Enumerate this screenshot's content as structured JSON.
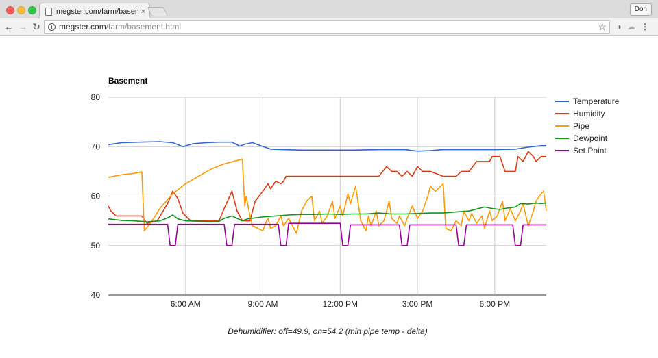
{
  "browser": {
    "tab_title": "megster.com/farm/basement.h",
    "tab_close": "×",
    "profile": "Don",
    "url_host": "megster.com",
    "url_path": "/farm/basement.html"
  },
  "icons": {
    "back": "←",
    "forward": "→",
    "reload": "↻",
    "info": "i",
    "star": "☆",
    "ext1": "◑",
    "ext2": "☁",
    "menu": "⋮"
  },
  "colors": {
    "temperature": "#3366cc",
    "humidity": "#dc3912",
    "pipe": "#ff9900",
    "dewpoint": "#109618",
    "setpoint": "#990099",
    "grid": "#cccccc"
  },
  "chart_data": {
    "type": "line",
    "title": "Basement",
    "caption": "Dehumidifier: off=49.9, on=54.2 (min pipe temp - delta)",
    "ylim": [
      40,
      80
    ],
    "yticks": [
      40,
      50,
      60,
      70,
      80
    ],
    "xlim": [
      3.0,
      20.0
    ],
    "x_unit": "hour of day",
    "xticks": [
      {
        "value": 6,
        "label": "6:00 AM"
      },
      {
        "value": 9,
        "label": "9:00 AM"
      },
      {
        "value": 12,
        "label": "12:00 PM"
      },
      {
        "value": 15,
        "label": "3:00 PM"
      },
      {
        "value": 18,
        "label": "6:00 PM"
      }
    ],
    "legend_position": "right",
    "grid": true,
    "series": [
      {
        "name": "Temperature",
        "key": "temperature",
        "points": [
          [
            3.0,
            70.4
          ],
          [
            3.5,
            70.8
          ],
          [
            4.2,
            70.9
          ],
          [
            5.0,
            71.0
          ],
          [
            5.5,
            70.8
          ],
          [
            5.9,
            70.0
          ],
          [
            6.3,
            70.6
          ],
          [
            6.8,
            70.8
          ],
          [
            7.3,
            70.9
          ],
          [
            7.8,
            70.9
          ],
          [
            8.1,
            70.1
          ],
          [
            8.3,
            70.5
          ],
          [
            8.6,
            70.8
          ],
          [
            8.9,
            70.2
          ],
          [
            9.3,
            69.5
          ],
          [
            9.8,
            69.4
          ],
          [
            10.5,
            69.3
          ],
          [
            11.5,
            69.3
          ],
          [
            12.5,
            69.3
          ],
          [
            13.5,
            69.4
          ],
          [
            14.5,
            69.4
          ],
          [
            15.0,
            69.1
          ],
          [
            15.5,
            69.2
          ],
          [
            16.0,
            69.4
          ],
          [
            17.0,
            69.4
          ],
          [
            18.0,
            69.4
          ],
          [
            18.8,
            69.5
          ],
          [
            19.3,
            69.9
          ],
          [
            19.8,
            70.2
          ],
          [
            20.0,
            70.2
          ]
        ]
      },
      {
        "name": "Humidity",
        "key": "humidity",
        "points": [
          [
            3.0,
            58.0
          ],
          [
            3.1,
            57.0
          ],
          [
            3.3,
            56.0
          ],
          [
            3.8,
            56.0
          ],
          [
            4.3,
            56.0
          ],
          [
            4.5,
            54.5
          ],
          [
            4.9,
            55.0
          ],
          [
            5.3,
            58.5
          ],
          [
            5.5,
            61.0
          ],
          [
            5.7,
            59.5
          ],
          [
            5.9,
            56.5
          ],
          [
            6.2,
            55.0
          ],
          [
            6.8,
            55.0
          ],
          [
            7.3,
            55.0
          ],
          [
            7.5,
            57.5
          ],
          [
            7.8,
            61.0
          ],
          [
            8.0,
            57.0
          ],
          [
            8.2,
            55.0
          ],
          [
            8.5,
            55.0
          ],
          [
            8.7,
            59.0
          ],
          [
            9.0,
            61.0
          ],
          [
            9.2,
            62.5
          ],
          [
            9.3,
            61.5
          ],
          [
            9.5,
            63.0
          ],
          [
            9.7,
            62.5
          ],
          [
            9.8,
            63.0
          ],
          [
            9.9,
            64.0
          ],
          [
            10.5,
            64.0
          ],
          [
            11.5,
            64.0
          ],
          [
            12.5,
            64.0
          ],
          [
            13.0,
            64.0
          ],
          [
            13.5,
            64.0
          ],
          [
            13.8,
            66.0
          ],
          [
            14.0,
            65.0
          ],
          [
            14.2,
            65.0
          ],
          [
            14.4,
            64.0
          ],
          [
            14.6,
            65.0
          ],
          [
            14.8,
            64.0
          ],
          [
            15.0,
            66.0
          ],
          [
            15.2,
            65.0
          ],
          [
            15.5,
            65.0
          ],
          [
            16.0,
            64.0
          ],
          [
            16.5,
            64.0
          ],
          [
            16.7,
            65.0
          ],
          [
            17.0,
            65.0
          ],
          [
            17.3,
            67.0
          ],
          [
            17.8,
            67.0
          ],
          [
            17.9,
            68.0
          ],
          [
            18.2,
            68.0
          ],
          [
            18.4,
            65.0
          ],
          [
            18.8,
            65.0
          ],
          [
            18.9,
            68.0
          ],
          [
            19.1,
            67.0
          ],
          [
            19.2,
            68.0
          ],
          [
            19.3,
            69.0
          ],
          [
            19.5,
            68.0
          ],
          [
            19.6,
            67.0
          ],
          [
            19.8,
            68.0
          ],
          [
            20.0,
            68.0
          ]
        ]
      },
      {
        "name": "Pipe",
        "key": "pipe",
        "points": [
          [
            3.0,
            63.8
          ],
          [
            3.5,
            64.3
          ],
          [
            4.0,
            64.6
          ],
          [
            4.3,
            64.9
          ],
          [
            4.4,
            53.0
          ],
          [
            4.7,
            55.0
          ],
          [
            5.0,
            57.5
          ],
          [
            5.5,
            60.5
          ],
          [
            6.0,
            62.5
          ],
          [
            6.5,
            64.0
          ],
          [
            7.0,
            65.5
          ],
          [
            7.5,
            66.5
          ],
          [
            8.0,
            67.2
          ],
          [
            8.2,
            67.5
          ],
          [
            8.3,
            58.0
          ],
          [
            8.35,
            60.0
          ],
          [
            8.5,
            56.0
          ],
          [
            8.6,
            54.0
          ],
          [
            8.8,
            53.5
          ],
          [
            9.0,
            53.0
          ],
          [
            9.1,
            54.5
          ],
          [
            9.2,
            55.5
          ],
          [
            9.3,
            53.5
          ],
          [
            9.5,
            54.0
          ],
          [
            9.7,
            56.0
          ],
          [
            9.8,
            54.0
          ],
          [
            10.0,
            55.5
          ],
          [
            10.3,
            52.5
          ],
          [
            10.5,
            57.0
          ],
          [
            10.7,
            59.0
          ],
          [
            10.9,
            60.0
          ],
          [
            11.0,
            55.0
          ],
          [
            11.2,
            57.0
          ],
          [
            11.3,
            54.5
          ],
          [
            11.5,
            56.0
          ],
          [
            11.7,
            59.0
          ],
          [
            11.8,
            55.5
          ],
          [
            12.0,
            58.0
          ],
          [
            12.1,
            56.0
          ],
          [
            12.3,
            60.5
          ],
          [
            12.4,
            58.5
          ],
          [
            12.6,
            62.0
          ],
          [
            12.8,
            55.0
          ],
          [
            13.0,
            53.0
          ],
          [
            13.1,
            56.0
          ],
          [
            13.2,
            54.0
          ],
          [
            13.4,
            57.0
          ],
          [
            13.5,
            54.0
          ],
          [
            13.7,
            55.0
          ],
          [
            13.9,
            59.0
          ],
          [
            14.0,
            55.5
          ],
          [
            14.2,
            54.5
          ],
          [
            14.3,
            56.0
          ],
          [
            14.5,
            54.0
          ],
          [
            14.6,
            55.5
          ],
          [
            14.8,
            58.0
          ],
          [
            15.0,
            55.5
          ],
          [
            15.2,
            57.0
          ],
          [
            15.4,
            60.0
          ],
          [
            15.5,
            62.0
          ],
          [
            15.7,
            61.0
          ],
          [
            16.0,
            62.5
          ],
          [
            16.1,
            53.5
          ],
          [
            16.3,
            53.0
          ],
          [
            16.5,
            55.0
          ],
          [
            16.7,
            54.0
          ],
          [
            16.8,
            57.0
          ],
          [
            17.0,
            55.0
          ],
          [
            17.1,
            56.5
          ],
          [
            17.3,
            54.5
          ],
          [
            17.5,
            56.0
          ],
          [
            17.6,
            53.5
          ],
          [
            17.8,
            57.0
          ],
          [
            17.9,
            55.0
          ],
          [
            18.1,
            56.0
          ],
          [
            18.3,
            59.0
          ],
          [
            18.4,
            55.0
          ],
          [
            18.6,
            57.5
          ],
          [
            18.8,
            55.0
          ],
          [
            19.0,
            57.0
          ],
          [
            19.1,
            58.5
          ],
          [
            19.3,
            54.0
          ],
          [
            19.5,
            57.0
          ],
          [
            19.6,
            59.0
          ],
          [
            19.8,
            60.5
          ],
          [
            19.9,
            61.0
          ],
          [
            20.0,
            57.0
          ]
        ]
      },
      {
        "name": "Dewpoint",
        "key": "dewpoint",
        "points": [
          [
            3.0,
            55.4
          ],
          [
            3.5,
            55.1
          ],
          [
            4.0,
            55.0
          ],
          [
            4.5,
            54.8
          ],
          [
            5.0,
            55.0
          ],
          [
            5.3,
            55.6
          ],
          [
            5.5,
            56.2
          ],
          [
            5.7,
            55.4
          ],
          [
            6.0,
            55.0
          ],
          [
            6.5,
            54.9
          ],
          [
            7.0,
            54.8
          ],
          [
            7.3,
            54.9
          ],
          [
            7.5,
            55.5
          ],
          [
            7.8,
            56.0
          ],
          [
            8.0,
            55.5
          ],
          [
            8.2,
            55.0
          ],
          [
            8.4,
            55.4
          ],
          [
            8.7,
            55.6
          ],
          [
            9.0,
            55.8
          ],
          [
            9.5,
            56.0
          ],
          [
            10.0,
            56.2
          ],
          [
            10.5,
            56.3
          ],
          [
            11.0,
            56.3
          ],
          [
            11.5,
            56.4
          ],
          [
            12.0,
            56.3
          ],
          [
            12.5,
            56.4
          ],
          [
            13.0,
            56.4
          ],
          [
            13.5,
            56.6
          ],
          [
            14.0,
            56.4
          ],
          [
            14.5,
            56.4
          ],
          [
            15.0,
            56.5
          ],
          [
            15.5,
            56.6
          ],
          [
            16.0,
            56.6
          ],
          [
            16.5,
            56.8
          ],
          [
            17.0,
            57.0
          ],
          [
            17.3,
            57.4
          ],
          [
            17.6,
            57.8
          ],
          [
            17.9,
            57.5
          ],
          [
            18.2,
            57.3
          ],
          [
            18.5,
            57.6
          ],
          [
            18.8,
            57.8
          ],
          [
            19.0,
            58.5
          ],
          [
            19.3,
            58.4
          ],
          [
            19.6,
            58.6
          ],
          [
            19.8,
            58.5
          ],
          [
            20.0,
            58.6
          ]
        ]
      },
      {
        "name": "Set Point",
        "key": "setpoint",
        "points": [
          [
            3.0,
            54.3
          ],
          [
            4.5,
            54.3
          ],
          [
            5.3,
            54.3
          ],
          [
            5.4,
            50.0
          ],
          [
            5.6,
            50.0
          ],
          [
            5.7,
            54.3
          ],
          [
            7.5,
            54.3
          ],
          [
            7.6,
            50.0
          ],
          [
            7.8,
            50.0
          ],
          [
            7.9,
            54.3
          ],
          [
            9.6,
            54.3
          ],
          [
            9.7,
            50.0
          ],
          [
            9.9,
            50.0
          ],
          [
            10.0,
            54.5
          ],
          [
            12.0,
            54.5
          ],
          [
            12.1,
            50.0
          ],
          [
            12.3,
            50.0
          ],
          [
            12.4,
            54.2
          ],
          [
            14.3,
            54.2
          ],
          [
            14.4,
            50.0
          ],
          [
            14.6,
            50.0
          ],
          [
            14.7,
            54.2
          ],
          [
            16.5,
            54.2
          ],
          [
            16.6,
            50.0
          ],
          [
            16.8,
            50.0
          ],
          [
            16.9,
            54.2
          ],
          [
            18.7,
            54.2
          ],
          [
            18.8,
            50.0
          ],
          [
            19.0,
            50.0
          ],
          [
            19.1,
            54.2
          ],
          [
            20.0,
            54.2
          ]
        ]
      }
    ]
  }
}
